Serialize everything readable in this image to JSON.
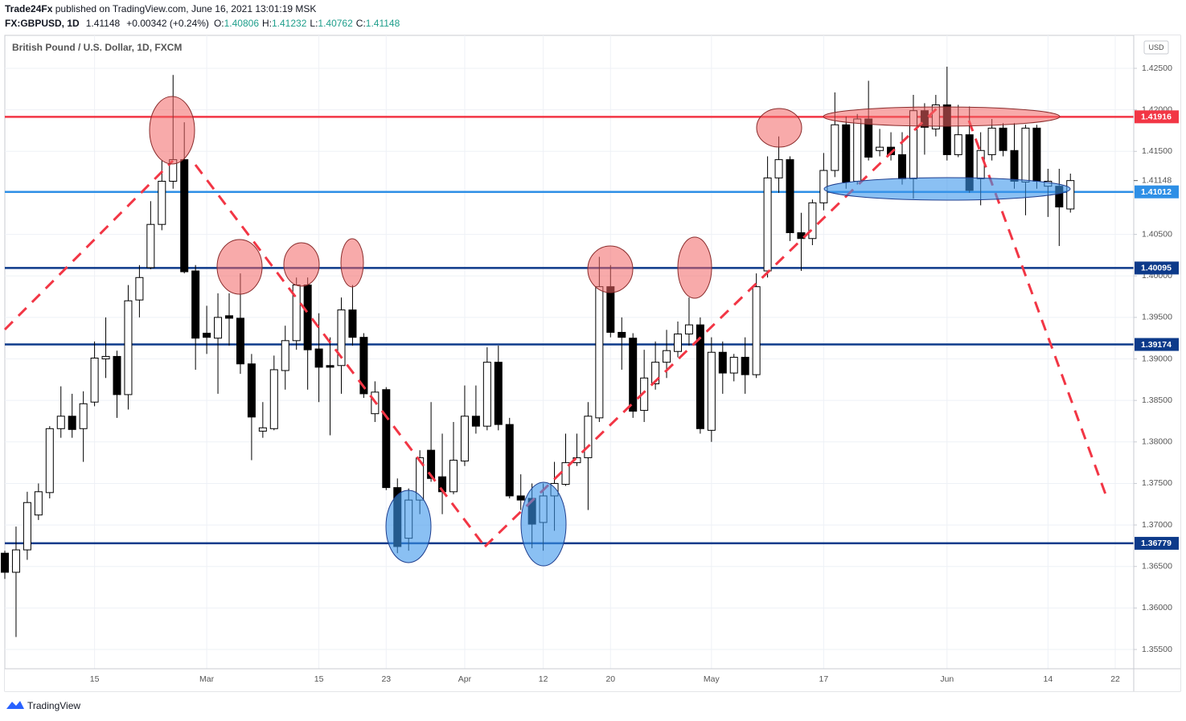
{
  "header": {
    "author": "Trade24Fx",
    "published": "published on TradingView.com, June 16, 2021 13:01:19 MSK",
    "symbol": "FX:GBPUSD, 1D",
    "last": "1.41148",
    "change": "+0.00342 (+0.24%)",
    "ohlc": [
      {
        "key": "O:",
        "value": "1.40806"
      },
      {
        "key": "H:",
        "value": "1.41232"
      },
      {
        "key": "L:",
        "value": "1.40762"
      },
      {
        "key": "C:",
        "value": "1.41148"
      }
    ]
  },
  "footer": "TradingView",
  "chart_data": {
    "type": "candlestick",
    "title": "British Pound / U.S. Dollar, 1D, FXCM",
    "currency": "USD",
    "categories": [
      null,
      null,
      null,
      null,
      null,
      null,
      null,
      null,
      "15",
      null,
      null,
      null,
      null,
      null,
      null,
      null,
      null,
      null,
      "Mar",
      null,
      null,
      null,
      null,
      null,
      null,
      null,
      null,
      null,
      "15",
      null,
      null,
      null,
      null,
      null,
      "23",
      null,
      null,
      null,
      null,
      null,
      null,
      "Apr",
      null,
      null,
      null,
      null,
      null,
      null,
      "12",
      null,
      null,
      null,
      null,
      null,
      "20",
      null,
      null,
      null,
      null,
      null,
      null,
      null,
      null,
      "May",
      null,
      null,
      null,
      null,
      null,
      null,
      null,
      null,
      null,
      "17",
      null,
      null,
      null,
      null,
      null,
      null,
      null,
      null,
      null,
      null,
      "Jun",
      null,
      null,
      null,
      null,
      null,
      null,
      null,
      null,
      "14",
      null,
      null,
      null,
      null,
      null,
      "22",
      null
    ],
    "open": [
      1.3666,
      1.3643,
      1.367,
      1.3712,
      1.3739,
      1.3816,
      1.3831,
      1.3816,
      1.3848,
      1.39,
      1.3903,
      1.3857,
      1.3971,
      1.401,
      1.4062,
      1.4114,
      1.414,
      1.4006,
      1.3931,
      1.3925,
      1.3952,
      1.3949,
      1.3894,
      1.3813,
      1.3816,
      1.3886,
      1.3922,
      1.3989,
      1.3912,
      1.3892,
      1.3892,
      1.3959,
      1.3926,
      1.3834,
      1.3863,
      1.3745,
      1.3684,
      1.373,
      1.379,
      1.3758,
      1.374,
      1.3777,
      1.3831,
      1.3819,
      1.3896,
      1.3821,
      1.3735,
      1.3732,
      1.3703,
      1.3735,
      1.3749,
      1.3775,
      1.3781,
      1.3829,
      1.3987,
      1.3932,
      1.3925,
      1.3838,
      1.387,
      1.3896,
      1.3909,
      1.393,
      1.3941,
      1.3814,
      1.3908,
      1.3883,
      1.3902,
      1.3881,
      1.4006,
      1.4118,
      1.414,
      1.4052,
      1.4045,
      1.4088,
      1.4127,
      1.4182,
      1.4114,
      1.4189,
      1.4151,
      1.4155,
      1.4146,
      1.4117,
      1.4199,
      1.4177,
      1.4206,
      1.4146,
      1.417,
      1.4117,
      1.4146,
      1.4178,
      1.4151,
      1.4113,
      1.4178,
      1.4108,
      1.4108,
      1.40806,
      null,
      null,
      null,
      null,
      null
    ],
    "high": [
      1.3669,
      1.3698,
      1.374,
      1.375,
      1.3819,
      1.3867,
      1.3858,
      1.3861,
      1.3921,
      1.395,
      1.391,
      1.3989,
      1.4013,
      1.409,
      1.4139,
      1.4242,
      1.4185,
      1.4013,
      1.3964,
      1.3979,
      1.3979,
      1.4003,
      1.3906,
      1.3848,
      1.3904,
      1.394,
      1.3998,
      1.3998,
      1.3955,
      1.3926,
      1.3974,
      1.3989,
      1.3931,
      1.3873,
      1.3866,
      1.3756,
      1.3744,
      1.379,
      1.3848,
      1.381,
      1.3824,
      1.3868,
      1.3868,
      1.3914,
      1.3916,
      1.3829,
      1.3761,
      1.375,
      1.375,
      1.3776,
      1.381,
      1.381,
      1.3848,
      1.4023,
      1.4013,
      1.395,
      1.3931,
      1.3911,
      1.3921,
      1.3935,
      1.3945,
      1.3974,
      1.395,
      1.3926,
      1.3921,
      1.3906,
      1.3926,
      1.4003,
      1.4144,
      1.4168,
      1.4144,
      1.4076,
      1.4092,
      1.4148,
      1.4221,
      1.4192,
      1.4195,
      1.4235,
      1.4177,
      1.4173,
      1.4173,
      1.4218,
      1.4208,
      1.4218,
      1.4252,
      1.4206,
      1.4204,
      1.4173,
      1.4189,
      1.4184,
      1.4184,
      1.4182,
      1.4182,
      1.4129,
      1.4129,
      1.41232,
      null,
      null,
      null,
      null,
      null
    ],
    "low": [
      1.3635,
      1.3565,
      1.3658,
      1.3706,
      1.3732,
      1.3805,
      1.3805,
      1.3776,
      1.3843,
      1.3877,
      1.3829,
      1.3839,
      1.395,
      1.4008,
      1.4055,
      1.4105,
      1.4003,
      1.3887,
      1.3906,
      1.3858,
      1.3916,
      1.3882,
      1.3778,
      1.3805,
      1.3814,
      1.3863,
      1.3911,
      1.3863,
      1.3848,
      1.3808,
      1.3858,
      1.3916,
      1.3853,
      1.3824,
      1.3742,
      1.3666,
      1.3669,
      1.3713,
      1.3752,
      1.3713,
      1.3737,
      1.3771,
      1.381,
      1.3814,
      1.3814,
      1.3732,
      1.3718,
      1.3672,
      1.3669,
      1.3693,
      1.3747,
      1.3771,
      1.3718,
      1.3824,
      1.3926,
      1.3887,
      1.3829,
      1.3824,
      1.3863,
      1.3877,
      1.3902,
      1.3916,
      1.381,
      1.38,
      1.3858,
      1.3873,
      1.3858,
      1.3877,
      1.3998,
      1.41,
      1.4042,
      1.4006,
      1.4037,
      1.4079,
      1.4119,
      1.4105,
      1.411,
      1.4139,
      1.4144,
      1.4139,
      1.411,
      1.4093,
      1.4146,
      1.4168,
      1.4139,
      1.4143,
      1.41,
      1.4085,
      1.4139,
      1.4144,
      1.4105,
      1.4073,
      1.4105,
      1.4071,
      1.4036,
      1.40762,
      null,
      null,
      null,
      null,
      null
    ],
    "close": [
      1.3643,
      1.367,
      1.3727,
      1.374,
      1.3816,
      1.3831,
      1.3815,
      1.3846,
      1.3901,
      1.3903,
      1.3857,
      1.397,
      1.3998,
      1.4062,
      1.4114,
      1.414,
      1.4005,
      1.3925,
      1.3926,
      1.395,
      1.3949,
      1.3894,
      1.383,
      1.3817,
      1.3887,
      1.3922,
      1.3989,
      1.3911,
      1.389,
      1.389,
      1.3959,
      1.3926,
      1.3858,
      1.386,
      1.3745,
      1.3674,
      1.373,
      1.3781,
      1.3756,
      1.374,
      1.3778,
      1.3831,
      1.3819,
      1.3896,
      1.3821,
      1.3735,
      1.373,
      1.3701,
      1.3735,
      1.375,
      1.3775,
      1.3781,
      1.3831,
      1.3987,
      1.3932,
      1.3926,
      1.3837,
      1.3877,
      1.3896,
      1.391,
      1.393,
      1.3941,
      1.3816,
      1.3908,
      1.3883,
      1.3902,
      1.3881,
      1.3987,
      1.4118,
      1.414,
      1.4052,
      1.4045,
      1.4088,
      1.4127,
      1.4182,
      1.4113,
      1.4189,
      1.4143,
      1.4155,
      1.4146,
      1.4117,
      1.4199,
      1.4179,
      1.4206,
      1.4146,
      1.417,
      1.4103,
      1.4151,
      1.4178,
      1.4151,
      1.4114,
      1.4178,
      1.4114,
      1.4114,
      1.4083,
      1.41148,
      null,
      null,
      null,
      null,
      null
    ],
    "up_color": "#ffffff",
    "down_color": "#000000",
    "wick_color": "#000000",
    "ylim": [
      1.35268,
      1.42897
    ],
    "yticks": [
      {
        "value": 1.355,
        "label": "1.35500"
      },
      {
        "value": 1.36,
        "label": "1.36000"
      },
      {
        "value": 1.365,
        "label": "1.36500"
      },
      {
        "value": 1.37,
        "label": "1.37000"
      },
      {
        "value": 1.375,
        "label": "1.37500"
      },
      {
        "value": 1.38,
        "label": "1.38000"
      },
      {
        "value": 1.385,
        "label": "1.38500"
      },
      {
        "value": 1.39,
        "label": "1.39000"
      },
      {
        "value": 1.395,
        "label": "1.39500"
      },
      {
        "value": 1.4,
        "label": "1.40000"
      },
      {
        "value": 1.405,
        "label": "1.40500"
      },
      {
        "value": 1.41,
        "label": "1.41000"
      },
      {
        "value": 1.415,
        "label": "1.41500"
      },
      {
        "value": 1.42,
        "label": "1.42000"
      },
      {
        "value": 1.425,
        "label": "1.42500"
      }
    ],
    "grid": true,
    "hlines": [
      {
        "value": 1.41916,
        "color": "#f23645"
      },
      {
        "value": 1.41012,
        "color": "#2e8fe6"
      },
      {
        "value": 1.40095,
        "color": "#0d3a8a"
      },
      {
        "value": 1.39174,
        "color": "#0d3a8a"
      },
      {
        "value": 1.36779,
        "color": "#0d3a8a"
      }
    ]
  }
}
